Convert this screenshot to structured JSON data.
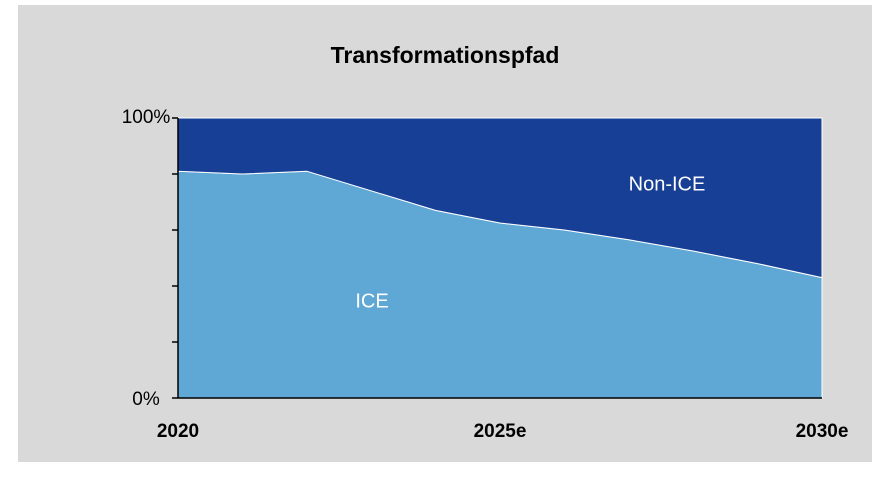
{
  "chart_data": {
    "type": "area",
    "stacked": true,
    "title": "Transformationspfad",
    "categories": [
      "2020",
      null,
      null,
      null,
      null,
      "2025e",
      null,
      null,
      null,
      null,
      "2030e"
    ],
    "series": [
      {
        "name": "ICE",
        "color": "#5fa8d5",
        "values": [
          81,
          80,
          81,
          74,
          67,
          62.5,
          60,
          56.5,
          52.5,
          48,
          43
        ]
      },
      {
        "name": "Non-ICE",
        "color": "#173f95",
        "values": [
          19,
          20,
          19,
          26,
          33,
          37.5,
          40,
          43.5,
          47.5,
          52,
          57
        ]
      }
    ],
    "ylim": [
      0,
      100
    ],
    "yticks": [
      {
        "value": 0,
        "label": "0%"
      },
      {
        "value": 100,
        "label": "100%"
      }
    ],
    "minor_yticks": [
      20,
      40,
      60,
      80
    ]
  }
}
